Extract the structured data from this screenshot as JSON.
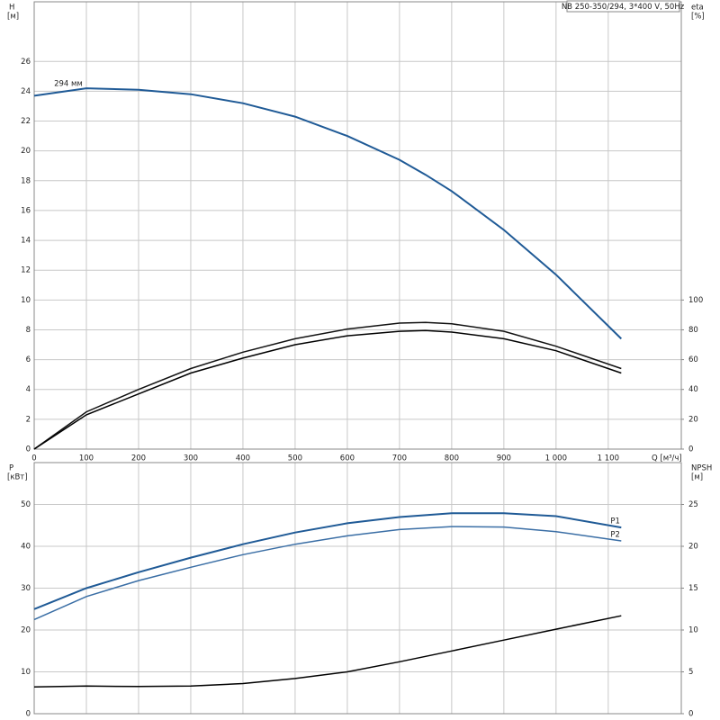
{
  "chart_data": [
    {
      "type": "line",
      "title": "NB 250-350/294, 3*400 V, 50Hz",
      "y_label": "H",
      "y_unit": "[м]",
      "y2_label": "eta",
      "y2_unit": "[%]",
      "x_label": "Q [м³/ч]",
      "x": [
        0,
        100,
        200,
        300,
        400,
        500,
        600,
        700,
        750,
        800,
        900,
        1000,
        1125
      ],
      "xlim": [
        0,
        1240
      ],
      "xticks": [
        0,
        100,
        200,
        300,
        400,
        500,
        600,
        700,
        800,
        900,
        {
          "value": 1000,
          "label": "1 000"
        },
        {
          "value": 1100,
          "label": "1 100"
        }
      ],
      "ylim": [
        0,
        30
      ],
      "yticks": [
        0,
        2,
        4,
        6,
        8,
        10,
        12,
        14,
        16,
        18,
        20,
        22,
        24,
        26
      ],
      "y2lim": [
        0,
        300
      ],
      "y2ticks": [
        0,
        20,
        40,
        60,
        80,
        100
      ],
      "grid": true,
      "series": [
        {
          "name": "294 мм",
          "color": "#1f5a96",
          "values": [
            23.7,
            24.2,
            24.1,
            23.8,
            23.2,
            22.3,
            21.0,
            19.4,
            18.4,
            17.3,
            14.7,
            11.7,
            7.4
          ]
        },
        {
          "color": "#111111",
          "axis": "y2",
          "values": [
            0,
            25,
            40,
            54,
            65,
            74,
            80.5,
            84.5,
            85,
            84,
            79,
            69,
            54
          ]
        },
        {
          "color": "#000000",
          "axis": "y2",
          "values": [
            0,
            23,
            37,
            51,
            61,
            70,
            76,
            79,
            79.5,
            78.5,
            74,
            66,
            51
          ]
        }
      ]
    },
    {
      "type": "line",
      "y_label": "P",
      "y_unit": "[кВт]",
      "y2_label": "NPSH",
      "y2_unit": "[м]",
      "x": [
        0,
        100,
        200,
        300,
        400,
        500,
        600,
        700,
        800,
        900,
        1000,
        1125
      ],
      "xlim": [
        0,
        1240
      ],
      "ylim": [
        0,
        60
      ],
      "yticks": [
        0,
        10,
        20,
        30,
        40,
        50
      ],
      "y2lim": [
        0,
        30
      ],
      "y2ticks": [
        0,
        5,
        10,
        15,
        20,
        25
      ],
      "grid": true,
      "series": [
        {
          "name": "P1",
          "color": "#1f5a96",
          "values": [
            25,
            30,
            33.8,
            37.3,
            40.5,
            43.3,
            45.5,
            47,
            47.9,
            47.9,
            47.2,
            44.5
          ]
        },
        {
          "name": "P2",
          "color": "#3a6ea5",
          "values": [
            22.5,
            28,
            31.8,
            35,
            38,
            40.5,
            42.5,
            44,
            44.7,
            44.6,
            43.5,
            41.3
          ]
        },
        {
          "color": "#000000",
          "axis": "y2",
          "values": [
            3.2,
            3.3,
            3.25,
            3.3,
            3.6,
            4.2,
            5.0,
            6.2,
            7.5,
            8.8,
            10.1,
            11.7
          ]
        }
      ]
    }
  ]
}
